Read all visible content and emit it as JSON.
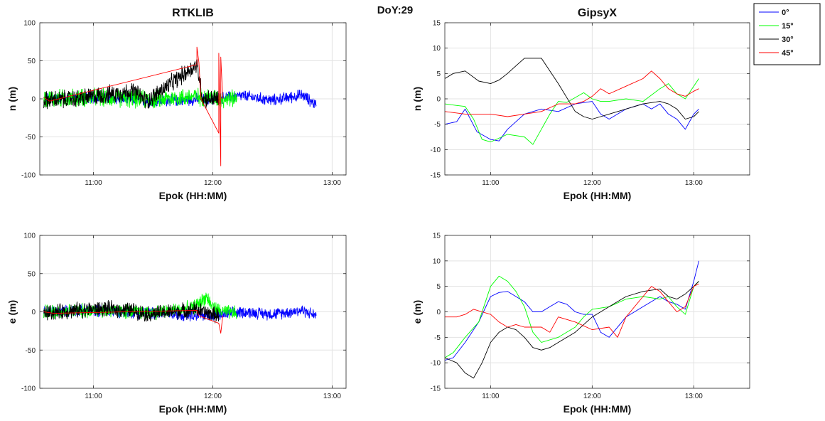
{
  "figure": {
    "suptitle": "DoY:29"
  },
  "legend": {
    "entries": [
      {
        "label": "0°",
        "color": "#0000ff"
      },
      {
        "label": "15°",
        "color": "#00ff00"
      },
      {
        "label": "30°",
        "color": "#000000"
      },
      {
        "label": "45°",
        "color": "#ff0000"
      }
    ],
    "placement": "top-right"
  },
  "chart_data": [
    {
      "id": "rtklib-n",
      "type": "line",
      "title": "RTKLIB",
      "xlabel": "Epok (HH:MM)",
      "ylabel": "n (m)",
      "xlim": [
        "10:33",
        "13:07"
      ],
      "ylim": [
        -100,
        100
      ],
      "xticks": [
        "11:00",
        "12:00",
        "13:00"
      ],
      "yticks": [
        -100,
        -50,
        0,
        50,
        100
      ],
      "grid": true,
      "series": [
        {
          "name": "0°",
          "color": "#0000ff",
          "x": [
            "10:35",
            "11:00",
            "11:30",
            "12:00",
            "12:15",
            "12:30",
            "12:45",
            "12:52"
          ],
          "y": [
            0,
            2,
            -3,
            0,
            4,
            -2,
            5,
            -8
          ],
          "noise_amplitude": 9
        },
        {
          "name": "15°",
          "color": "#00ff00",
          "x": [
            "10:35",
            "11:00",
            "11:30",
            "11:50",
            "12:00",
            "12:05",
            "12:12"
          ],
          "y": [
            0,
            2,
            -1,
            3,
            2,
            0,
            1
          ],
          "noise_amplitude": 14
        },
        {
          "name": "30°",
          "color": "#000000",
          "x": [
            "10:35",
            "10:50",
            "11:05",
            "11:20",
            "11:27",
            "11:52",
            "11:55",
            "12:03"
          ],
          "y": [
            -2,
            0,
            5,
            10,
            -3,
            45,
            0,
            0
          ],
          "noise_amplitude": 14
        },
        {
          "name": "45°",
          "color": "#ff0000",
          "x": [
            "10:35",
            "10:38",
            "11:52",
            "11:52",
            "11:53",
            "11:54",
            "12:03",
            "12:03",
            "12:04",
            "12:04",
            "12:05"
          ],
          "y": [
            2,
            -3,
            45,
            68,
            48,
            0,
            -45,
            60,
            -88,
            55,
            0
          ],
          "noise_amplitude": 0
        }
      ]
    },
    {
      "id": "gipsyx-n",
      "type": "line",
      "title": "GipsyX",
      "xlabel": "Epok (HH:MM)",
      "ylabel": "n (m)",
      "xlim": [
        "10:33",
        "13:33"
      ],
      "ylim": [
        -15,
        15
      ],
      "xticks": [
        "11:00",
        "12:00",
        "13:00"
      ],
      "yticks": [
        -15,
        -10,
        -5,
        0,
        5,
        10,
        15
      ],
      "grid": true,
      "series": [
        {
          "name": "0°",
          "color": "#0000ff",
          "x": [
            "10:33",
            "10:40",
            "10:45",
            "10:52",
            "11:00",
            "11:05",
            "11:10",
            "11:20",
            "11:30",
            "11:40",
            "11:50",
            "12:00",
            "12:05",
            "12:10",
            "12:15",
            "12:20",
            "12:30",
            "12:35",
            "12:40",
            "12:45",
            "12:50",
            "12:55",
            "13:00",
            "13:03"
          ],
          "y": [
            -5,
            -4.5,
            -2,
            -6.5,
            -8,
            -8.3,
            -6,
            -3,
            -2,
            -2.5,
            -1,
            -0.5,
            -3,
            -4,
            -3,
            -2,
            -1,
            -2,
            -1,
            -3,
            -4,
            -6,
            -3,
            -2
          ]
        },
        {
          "name": "15°",
          "color": "#00ff00",
          "x": [
            "10:33",
            "10:40",
            "10:45",
            "10:50",
            "10:55",
            "11:00",
            "11:10",
            "11:20",
            "11:25",
            "11:35",
            "11:40",
            "11:45",
            "11:55",
            "12:00",
            "12:05",
            "12:10",
            "12:20",
            "12:30",
            "12:40",
            "12:45",
            "12:50",
            "12:55",
            "13:00",
            "13:03"
          ],
          "y": [
            -1,
            -1.3,
            -1.5,
            -4,
            -8,
            -8.5,
            -7,
            -7.5,
            -9,
            -3,
            -0.5,
            -0.7,
            1.2,
            0,
            -0.5,
            -0.5,
            0,
            -0.5,
            2,
            3,
            1,
            0,
            2.5,
            4
          ]
        },
        {
          "name": "30°",
          "color": "#000000",
          "x": [
            "10:33",
            "10:38",
            "10:45",
            "10:53",
            "11:00",
            "11:05",
            "11:10",
            "11:15",
            "11:20",
            "11:30",
            "11:40",
            "11:50",
            "11:55",
            "12:00",
            "12:05",
            "12:10",
            "12:20",
            "12:30",
            "12:40",
            "12:45",
            "12:50",
            "12:55",
            "13:00",
            "13:03"
          ],
          "y": [
            4,
            5,
            5.5,
            3.5,
            3,
            3.7,
            5,
            6.5,
            8,
            8,
            3,
            -2.5,
            -3.5,
            -4,
            -3.5,
            -3,
            -2,
            -1,
            -0.5,
            -1,
            -2,
            -4,
            -3.5,
            -2.5
          ]
        },
        {
          "name": "45°",
          "color": "#ff0000",
          "x": [
            "10:33",
            "10:45",
            "11:00",
            "11:10",
            "11:20",
            "11:30",
            "11:40",
            "11:50",
            "11:55",
            "12:00",
            "12:05",
            "12:10",
            "12:20",
            "12:30",
            "12:35",
            "12:40",
            "12:45",
            "12:50",
            "12:55",
            "13:00",
            "13:03"
          ],
          "y": [
            -2.5,
            -3,
            -3,
            -3.5,
            -3,
            -2.5,
            -1,
            -1,
            -0.5,
            0.5,
            2,
            1,
            2.5,
            4,
            5.5,
            4,
            2,
            1,
            0.5,
            1.5,
            2
          ]
        }
      ]
    },
    {
      "id": "rtklib-e",
      "type": "line",
      "title": "",
      "xlabel": "Epok (HH:MM)",
      "ylabel": "e (m)",
      "xlim": [
        "10:33",
        "13:07"
      ],
      "ylim": [
        -100,
        100
      ],
      "xticks": [
        "11:00",
        "12:00",
        "13:00"
      ],
      "yticks": [
        -100,
        -50,
        0,
        50,
        100
      ],
      "grid": true,
      "series": [
        {
          "name": "0°",
          "color": "#0000ff",
          "x": [
            "10:35",
            "11:00",
            "11:30",
            "12:00",
            "12:15",
            "12:30",
            "12:45",
            "12:52"
          ],
          "y": [
            0,
            2,
            -2,
            -5,
            0,
            -3,
            2,
            -5
          ],
          "noise_amplitude": 9
        },
        {
          "name": "15°",
          "color": "#00ff00",
          "x": [
            "10:35",
            "11:00",
            "11:30",
            "11:50",
            "11:57",
            "12:00",
            "12:05",
            "12:12"
          ],
          "y": [
            0,
            2,
            -1,
            5,
            20,
            5,
            0,
            -2
          ],
          "noise_amplitude": 11
        },
        {
          "name": "30°",
          "color": "#000000",
          "x": [
            "10:35",
            "10:50",
            "11:05",
            "11:20",
            "11:27",
            "11:52",
            "11:55",
            "12:03"
          ],
          "y": [
            -2,
            2,
            4,
            2,
            -3,
            3,
            0,
            -5
          ],
          "noise_amplitude": 12
        },
        {
          "name": "45°",
          "color": "#ff0000",
          "x": [
            "10:35",
            "10:40",
            "11:52",
            "11:53",
            "12:03",
            "12:04",
            "12:05"
          ],
          "y": [
            0,
            -2,
            2,
            -5,
            -15,
            -28,
            -5
          ],
          "noise_amplitude": 0
        }
      ]
    },
    {
      "id": "gipsyx-e",
      "type": "line",
      "title": "",
      "xlabel": "Epok (HH:MM)",
      "ylabel": "e (m)",
      "xlim": [
        "10:33",
        "13:33"
      ],
      "ylim": [
        -15,
        15
      ],
      "xticks": [
        "11:00",
        "12:00",
        "13:00"
      ],
      "yticks": [
        -15,
        -10,
        -5,
        0,
        5,
        10,
        15
      ],
      "grid": true,
      "series": [
        {
          "name": "0°",
          "color": "#0000ff",
          "x": [
            "10:33",
            "10:38",
            "10:45",
            "10:53",
            "11:00",
            "11:05",
            "11:10",
            "11:15",
            "11:20",
            "11:25",
            "11:30",
            "11:35",
            "11:40",
            "11:45",
            "11:50",
            "11:55",
            "12:00",
            "12:05",
            "12:10",
            "12:20",
            "12:30",
            "12:40",
            "12:45",
            "12:50",
            "12:55",
            "13:00",
            "13:03"
          ],
          "y": [
            -9.5,
            -9,
            -6,
            -2,
            3,
            3.8,
            4,
            3,
            2,
            0,
            0,
            1,
            2,
            1.5,
            0,
            -0.5,
            -0.5,
            -4,
            -5,
            -1,
            1,
            3,
            2,
            1.5,
            0.5,
            6,
            10
          ]
        },
        {
          "name": "15°",
          "color": "#00ff00",
          "x": [
            "10:33",
            "10:38",
            "10:45",
            "10:53",
            "11:00",
            "11:05",
            "11:10",
            "11:15",
            "11:20",
            "11:25",
            "11:30",
            "11:40",
            "11:50",
            "11:55",
            "12:00",
            "12:10",
            "12:20",
            "12:30",
            "12:40",
            "12:45",
            "12:50",
            "12:55",
            "13:00",
            "13:03"
          ],
          "y": [
            -9,
            -8,
            -5,
            -2,
            5,
            7,
            6,
            4,
            1,
            -4,
            -6,
            -5,
            -3,
            -1,
            0.5,
            1,
            2.5,
            3,
            2.5,
            3,
            1,
            -0.5,
            5,
            6
          ]
        },
        {
          "name": "30°",
          "color": "#000000",
          "x": [
            "10:33",
            "10:40",
            "10:45",
            "10:50",
            "10:55",
            "11:00",
            "11:05",
            "11:10",
            "11:15",
            "11:20",
            "11:25",
            "11:30",
            "11:35",
            "11:40",
            "11:50",
            "12:00",
            "12:10",
            "12:20",
            "12:30",
            "12:40",
            "12:45",
            "12:50",
            "12:55",
            "13:00",
            "13:03"
          ],
          "y": [
            -9,
            -10,
            -12,
            -13,
            -10,
            -6,
            -4,
            -3,
            -3.5,
            -5,
            -7,
            -7.5,
            -7,
            -6,
            -4,
            -1,
            1,
            3,
            4,
            4.5,
            3,
            2.5,
            3.5,
            5,
            6
          ]
        },
        {
          "name": "45°",
          "color": "#ff0000",
          "x": [
            "10:33",
            "10:40",
            "10:45",
            "10:50",
            "10:55",
            "11:00",
            "11:05",
            "11:10",
            "11:15",
            "11:20",
            "11:30",
            "11:35",
            "11:40",
            "11:50",
            "12:00",
            "12:10",
            "12:15",
            "12:20",
            "12:30",
            "12:35",
            "12:40",
            "12:45",
            "12:50",
            "12:55",
            "13:00",
            "13:03"
          ],
          "y": [
            -1,
            -1,
            -0.5,
            0.5,
            0,
            -0.5,
            -2,
            -3,
            -2.5,
            -3,
            -3,
            -4,
            -1,
            -2,
            -3.5,
            -3,
            -5,
            -1,
            3,
            5,
            4,
            2,
            0,
            1,
            5,
            5.5
          ]
        }
      ]
    }
  ]
}
